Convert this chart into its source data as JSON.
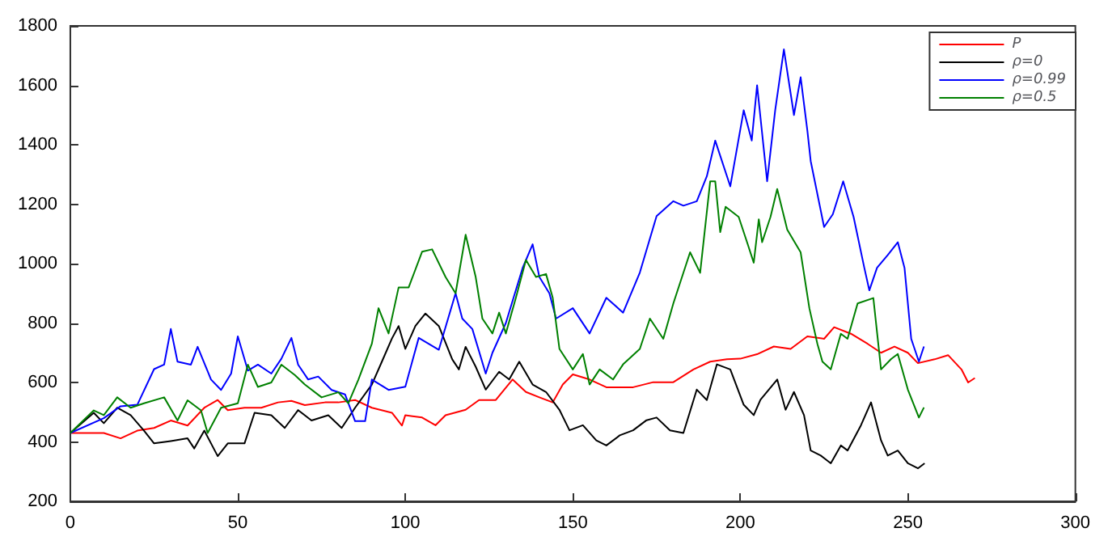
{
  "chart_data": {
    "type": "line",
    "xlim": [
      0,
      300
    ],
    "xticks": [
      0,
      50,
      100,
      150,
      200,
      250,
      300
    ],
    "ylim": [
      200,
      1800
    ],
    "yticks": [
      200,
      400,
      600,
      800,
      1000,
      1200,
      1400,
      1600,
      1800
    ],
    "grid": false,
    "legend": "top right",
    "marker": "none",
    "line_style": "solid",
    "series": [
      {
        "name": "P",
        "color": "#ff0000",
        "x": [
          0,
          10,
          15,
          20,
          25,
          30,
          35,
          40,
          44,
          47,
          52,
          57,
          62,
          66,
          70,
          76,
          80,
          85,
          90,
          96,
          99,
          100,
          105,
          109,
          112,
          118,
          122,
          127,
          132,
          136,
          140,
          144,
          147,
          150,
          155,
          160,
          168,
          174,
          180,
          186,
          191,
          196,
          200,
          205,
          210,
          215,
          220,
          225,
          228,
          233,
          238,
          242,
          246,
          250,
          253,
          258,
          262,
          266,
          268,
          270
        ],
        "values": [
          430,
          430,
          412,
          438,
          447,
          472,
          455,
          515,
          541,
          507,
          515,
          515,
          533,
          538,
          524,
          533,
          533,
          541,
          515,
          498,
          455,
          490,
          482,
          456,
          490,
          508,
          541,
          541,
          610,
          568,
          550,
          533,
          593,
          627,
          610,
          584,
          584,
          601,
          601,
          644,
          670,
          678,
          680,
          695,
          721,
          713,
          755,
          747,
          786,
          764,
          730,
          700,
          721,
          700,
          665,
          678,
          692,
          644,
          600,
          615
        ]
      },
      {
        "name": "ρ=0",
        "color": "#000000",
        "x": [
          0,
          7,
          10,
          14,
          18,
          22,
          25,
          30,
          35,
          37,
          40,
          44,
          47,
          52,
          55,
          60,
          64,
          68,
          72,
          77,
          81,
          85,
          90,
          93,
          96,
          98,
          100,
          103,
          106,
          110,
          114,
          116,
          118,
          121,
          124,
          128,
          131,
          134,
          138,
          142,
          146,
          149,
          153,
          157,
          160,
          164,
          168,
          172,
          175,
          179,
          183,
          187,
          190,
          193,
          197,
          201,
          204,
          206,
          211,
          213.5,
          216,
          219,
          221,
          224,
          227,
          230,
          232,
          236,
          239,
          242,
          244,
          247,
          250,
          253,
          255
        ],
        "values": [
          430,
          498,
          463,
          515,
          490,
          438,
          395,
          403,
          412,
          378,
          438,
          352,
          395,
          395,
          498,
          490,
          447,
          507,
          472,
          490,
          447,
          515,
          593,
          670,
          748,
          790,
          713,
          790,
          832,
          790,
          678,
          644,
          720,
          653,
          576,
          636,
          610,
          670,
          593,
          568,
          508,
          439,
          456,
          405,
          388,
          422,
          439,
          473,
          482,
          439,
          430,
          576,
          541,
          661,
          644,
          525,
          490,
          542,
          610,
          508,
          568,
          490,
          371,
          354,
          328,
          388,
          371,
          456,
          533,
          405,
          354,
          371,
          328,
          311,
          328
        ]
      },
      {
        "name": "ρ=0.99",
        "color": "#0000ff",
        "x": [
          0,
          10,
          15,
          20,
          25,
          28,
          30,
          32,
          36,
          38,
          42,
          45,
          48,
          50,
          53,
          56,
          60,
          63,
          66,
          68,
          71,
          74,
          78,
          82,
          85,
          88,
          90,
          95,
          100,
          104,
          110,
          115,
          117,
          120,
          124,
          126,
          130,
          135,
          138,
          140,
          143,
          145,
          150,
          155,
          160,
          165,
          170,
          175,
          180,
          183,
          187,
          190,
          192.5,
          197,
          201,
          203.4,
          205,
          208,
          210.4,
          213,
          216,
          218,
          220,
          221,
          225,
          227.6,
          230.7,
          233.8,
          237,
          238.5,
          240.8,
          244,
          247,
          249,
          251,
          253.3,
          254.8
        ],
        "values": [
          430,
          480,
          520,
          525,
          645,
          660,
          780,
          670,
          660,
          720,
          610,
          575,
          630,
          755,
          640,
          660,
          630,
          680,
          750,
          660,
          610,
          620,
          575,
          560,
          470,
          470,
          610,
          575,
          586,
          750,
          710,
          900,
          815,
          780,
          630,
          700,
          800,
          985,
          1065,
          955,
          900,
          815,
          850,
          765,
          885,
          835,
          970,
          1160,
          1210,
          1195,
          1210,
          1294,
          1414,
          1260,
          1516,
          1414,
          1600,
          1277,
          1516,
          1721,
          1500,
          1627,
          1448,
          1345,
          1123,
          1166,
          1277,
          1157,
          986,
          910,
          986,
          1029,
          1072,
          986,
          747,
          670,
          721
        ]
      },
      {
        "name": "ρ=0.5",
        "color": "#008000",
        "x": [
          0,
          7,
          10,
          14,
          18,
          22,
          28,
          32,
          35,
          39,
          41,
          45,
          50,
          53,
          56,
          60,
          63,
          67,
          70,
          75,
          80,
          83,
          86,
          90,
          92,
          95,
          98,
          101,
          105,
          108,
          112,
          115,
          118,
          121,
          123,
          126,
          128,
          130,
          133,
          136,
          139,
          142,
          144,
          146,
          150,
          153,
          155,
          158,
          162,
          165,
          170,
          173,
          177,
          180,
          185,
          188,
          191,
          192.5,
          194,
          195.6,
          199.5,
          202,
          204,
          205.5,
          206.5,
          209,
          211,
          214,
          218,
          220.6,
          223,
          224.5,
          227,
          230,
          232,
          235,
          239.7,
          242,
          245,
          247,
          250,
          253.3,
          254.8
        ],
        "values": [
          430,
          506,
          490,
          550,
          515,
          530,
          550,
          472,
          540,
          506,
          430,
          515,
          530,
          660,
          585,
          600,
          660,
          625,
          593,
          550,
          567,
          530,
          610,
          730,
          850,
          765,
          920,
          920,
          1040,
          1048,
          955,
          900,
          1097,
          955,
          815,
          765,
          835,
          765,
          885,
          1012,
          955,
          965,
          885,
          713,
          644,
          696,
          593,
          644,
          610,
          661,
          713,
          815,
          747,
          866,
          1038,
          969,
          1277,
          1277,
          1106,
          1191,
          1157,
          1072,
          1003,
          1149,
          1072,
          1157,
          1251,
          1114,
          1038,
          850,
          730,
          670,
          644,
          764,
          747,
          866,
          884,
          644,
          679,
          696,
          576,
          482,
          516
        ]
      }
    ]
  }
}
